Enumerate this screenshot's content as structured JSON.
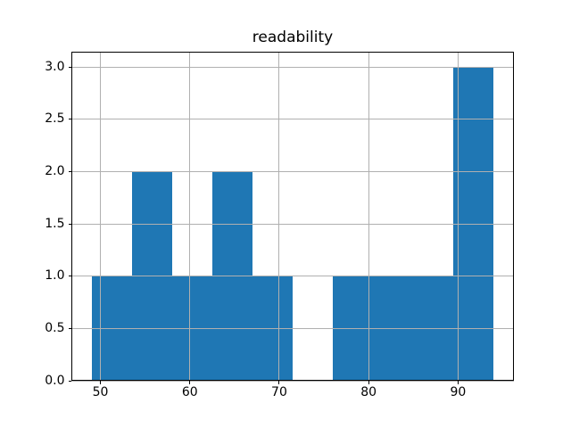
{
  "figure": {
    "background": "#ffffff"
  },
  "chart_data": {
    "type": "bar",
    "subtype": "histogram",
    "title": "readability",
    "xlabel": "",
    "ylabel": "",
    "bin_edges": [
      49,
      53.5,
      58,
      62.5,
      67,
      71.5,
      76,
      80.5,
      85,
      89.5,
      94
    ],
    "counts": [
      1,
      2,
      1,
      2,
      1,
      0,
      1,
      1,
      1,
      3
    ],
    "xlim": [
      46.75,
      96.25
    ],
    "ylim": [
      0,
      3.15
    ],
    "x_ticks": [
      50,
      60,
      70,
      80,
      90
    ],
    "x_tick_labels": [
      "50",
      "60",
      "70",
      "80",
      "90"
    ],
    "y_ticks": [
      0,
      0.5,
      1,
      1.5,
      2,
      2.5,
      3
    ],
    "y_tick_labels": [
      "0.0",
      "0.5",
      "1.0",
      "1.5",
      "2.0",
      "2.5",
      "3.0"
    ],
    "grid": true,
    "grid_above_bars": true,
    "legend": null,
    "bar_color": "#1f77b4",
    "grid_color": "#b0b0b0",
    "axis_color": "#000000",
    "text_color": "#000000"
  }
}
